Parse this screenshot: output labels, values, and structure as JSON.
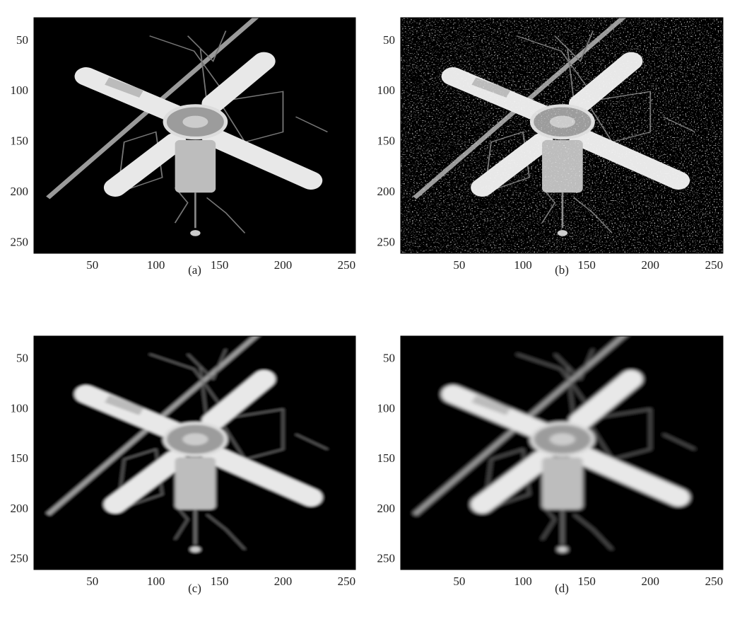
{
  "chart_data": [
    {
      "type": "image",
      "caption": "(a)",
      "xlim": [
        4,
        257
      ],
      "ylim": [
        27,
        260
      ],
      "y_direction": "down",
      "xticks": [
        50,
        100,
        150,
        200,
        250
      ],
      "yticks": [
        50,
        100,
        150,
        200,
        250
      ]
    },
    {
      "type": "image",
      "caption": "(b)",
      "xlim": [
        4,
        257
      ],
      "ylim": [
        27,
        260
      ],
      "y_direction": "down",
      "xticks": [
        50,
        100,
        150,
        200,
        250
      ],
      "yticks": [
        50,
        100,
        150,
        200,
        250
      ]
    },
    {
      "type": "image",
      "caption": "(c)",
      "xlim": [
        4,
        257
      ],
      "ylim": [
        27,
        260
      ],
      "y_direction": "down",
      "xticks": [
        50,
        100,
        150,
        200,
        250
      ],
      "yticks": [
        50,
        100,
        150,
        200,
        250
      ]
    },
    {
      "type": "image",
      "caption": "(d)",
      "xlim": [
        4,
        257
      ],
      "ylim": [
        27,
        260
      ],
      "y_direction": "down",
      "xticks": [
        50,
        100,
        150,
        200,
        250
      ],
      "yticks": [
        50,
        100,
        150,
        200,
        250
      ]
    }
  ]
}
